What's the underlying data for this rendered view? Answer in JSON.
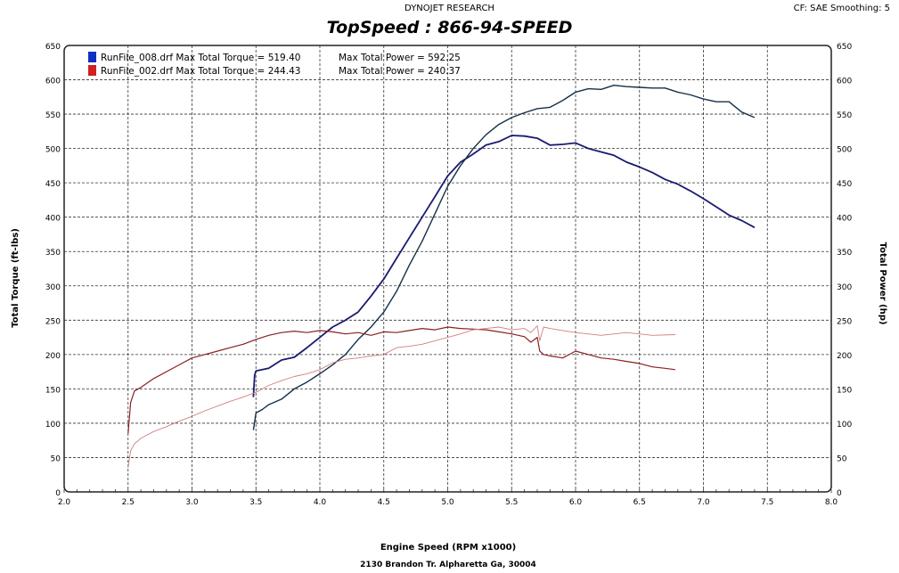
{
  "header": {
    "company": "DYNOJET RESEARCH",
    "settings": "CF: SAE  Smoothing: 5"
  },
  "footer": {
    "address": "2130 Brandon Tr. Alpharetta Ga, 30004"
  },
  "chart_data": {
    "type": "line",
    "title": "TopSpeed : 866-94-SPEED",
    "xlabel": "Engine Speed (RPM x1000)",
    "ylabel": "Total Torque (ft-lbs)",
    "y2label": "Total Power (hp)",
    "xlim": [
      2.0,
      8.0
    ],
    "ylim": [
      0,
      650
    ],
    "xticks": [
      "2.0",
      "2.5",
      "3.0",
      "3.5",
      "4.0",
      "4.5",
      "5.0",
      "5.5",
      "6.0",
      "6.5",
      "7.0",
      "7.5",
      "8.0"
    ],
    "yticks": [
      "0",
      "50",
      "100",
      "150",
      "200",
      "250",
      "300",
      "350",
      "400",
      "450",
      "500",
      "550",
      "600",
      "650"
    ],
    "grid": true,
    "legend_position": "top-left",
    "legend": [
      {
        "label": "RunFile_008.drf Max Total Torque = 519.40",
        "power": "Max Total Power = 592.25",
        "color": "#1030c0"
      },
      {
        "label": "RunFile_002.drf Max Total Torque = 244.43",
        "power": "Max Total Power = 240.37",
        "color": "#d02020"
      }
    ],
    "series": [
      {
        "name": "RunFile_008 Torque",
        "color": "#1a1a70",
        "width": 1.8,
        "x": [
          3.48,
          3.49,
          3.5,
          3.55,
          3.6,
          3.7,
          3.8,
          3.9,
          4.0,
          4.1,
          4.2,
          4.3,
          4.4,
          4.5,
          4.6,
          4.7,
          4.8,
          4.9,
          5.0,
          5.1,
          5.2,
          5.3,
          5.4,
          5.5,
          5.6,
          5.7,
          5.8,
          5.9,
          6.0,
          6.1,
          6.2,
          6.3,
          6.4,
          6.5,
          6.6,
          6.7,
          6.8,
          6.9,
          7.0,
          7.1,
          7.2,
          7.3,
          7.4
        ],
        "y": [
          138,
          170,
          176,
          178,
          180,
          192,
          196,
          210,
          225,
          240,
          250,
          262,
          285,
          310,
          340,
          370,
          400,
          430,
          460,
          480,
          492,
          505,
          510,
          519,
          518,
          515,
          505,
          506,
          508,
          500,
          495,
          490,
          480,
          473,
          465,
          455,
          448,
          438,
          427,
          415,
          403,
          395,
          385
        ]
      },
      {
        "name": "RunFile_008 Power",
        "color": "#14304a",
        "width": 1.4,
        "x": [
          3.48,
          3.5,
          3.55,
          3.6,
          3.7,
          3.8,
          3.9,
          4.0,
          4.1,
          4.2,
          4.3,
          4.4,
          4.5,
          4.6,
          4.7,
          4.8,
          4.9,
          5.0,
          5.1,
          5.2,
          5.3,
          5.4,
          5.5,
          5.6,
          5.7,
          5.8,
          5.9,
          6.0,
          6.1,
          6.2,
          6.3,
          6.4,
          6.5,
          6.6,
          6.7,
          6.8,
          6.9,
          7.0,
          7.1,
          7.2,
          7.3,
          7.4
        ],
        "y": [
          90,
          115,
          120,
          127,
          135,
          150,
          160,
          172,
          185,
          200,
          222,
          240,
          262,
          292,
          330,
          365,
          405,
          445,
          475,
          500,
          520,
          535,
          545,
          552,
          558,
          560,
          570,
          582,
          587,
          586,
          592,
          590,
          589,
          588,
          588,
          582,
          578,
          572,
          568,
          568,
          553,
          545
        ]
      },
      {
        "name": "RunFile_002 Torque",
        "color": "#8a2020",
        "width": 1.2,
        "x": [
          2.5,
          2.52,
          2.55,
          2.6,
          2.7,
          2.8,
          2.9,
          3.0,
          3.1,
          3.2,
          3.3,
          3.4,
          3.5,
          3.6,
          3.7,
          3.8,
          3.9,
          4.0,
          4.1,
          4.2,
          4.3,
          4.4,
          4.5,
          4.6,
          4.7,
          4.8,
          4.9,
          5.0,
          5.1,
          5.2,
          5.3,
          5.4,
          5.5,
          5.6,
          5.65,
          5.7,
          5.72,
          5.75,
          5.8,
          5.9,
          6.0,
          6.1,
          6.2,
          6.3,
          6.4,
          6.5,
          6.6,
          6.7,
          6.78
        ],
        "y": [
          85,
          130,
          147,
          152,
          165,
          175,
          185,
          195,
          200,
          205,
          210,
          215,
          222,
          228,
          232,
          234,
          232,
          235,
          233,
          230,
          232,
          228,
          233,
          232,
          235,
          238,
          236,
          240,
          238,
          237,
          236,
          233,
          230,
          226,
          218,
          225,
          205,
          200,
          198,
          195,
          205,
          200,
          195,
          193,
          190,
          187,
          182,
          180,
          178
        ]
      },
      {
        "name": "RunFile_002 Power",
        "color": "#d08080",
        "width": 0.9,
        "x": [
          2.5,
          2.52,
          2.55,
          2.6,
          2.7,
          2.8,
          2.9,
          3.0,
          3.1,
          3.2,
          3.3,
          3.4,
          3.5,
          3.6,
          3.7,
          3.8,
          3.9,
          4.0,
          4.1,
          4.2,
          4.3,
          4.4,
          4.5,
          4.6,
          4.7,
          4.8,
          4.9,
          5.0,
          5.1,
          5.2,
          5.3,
          5.4,
          5.5,
          5.6,
          5.65,
          5.7,
          5.72,
          5.75,
          5.8,
          5.9,
          6.0,
          6.2,
          6.4,
          6.6,
          6.78
        ],
        "y": [
          35,
          60,
          70,
          78,
          88,
          95,
          103,
          110,
          118,
          125,
          132,
          138,
          145,
          155,
          162,
          168,
          172,
          178,
          188,
          193,
          195,
          198,
          200,
          210,
          212,
          215,
          220,
          225,
          230,
          236,
          238,
          240,
          236,
          238,
          232,
          242,
          220,
          240,
          238,
          235,
          232,
          228,
          232,
          228,
          229
        ]
      }
    ]
  }
}
